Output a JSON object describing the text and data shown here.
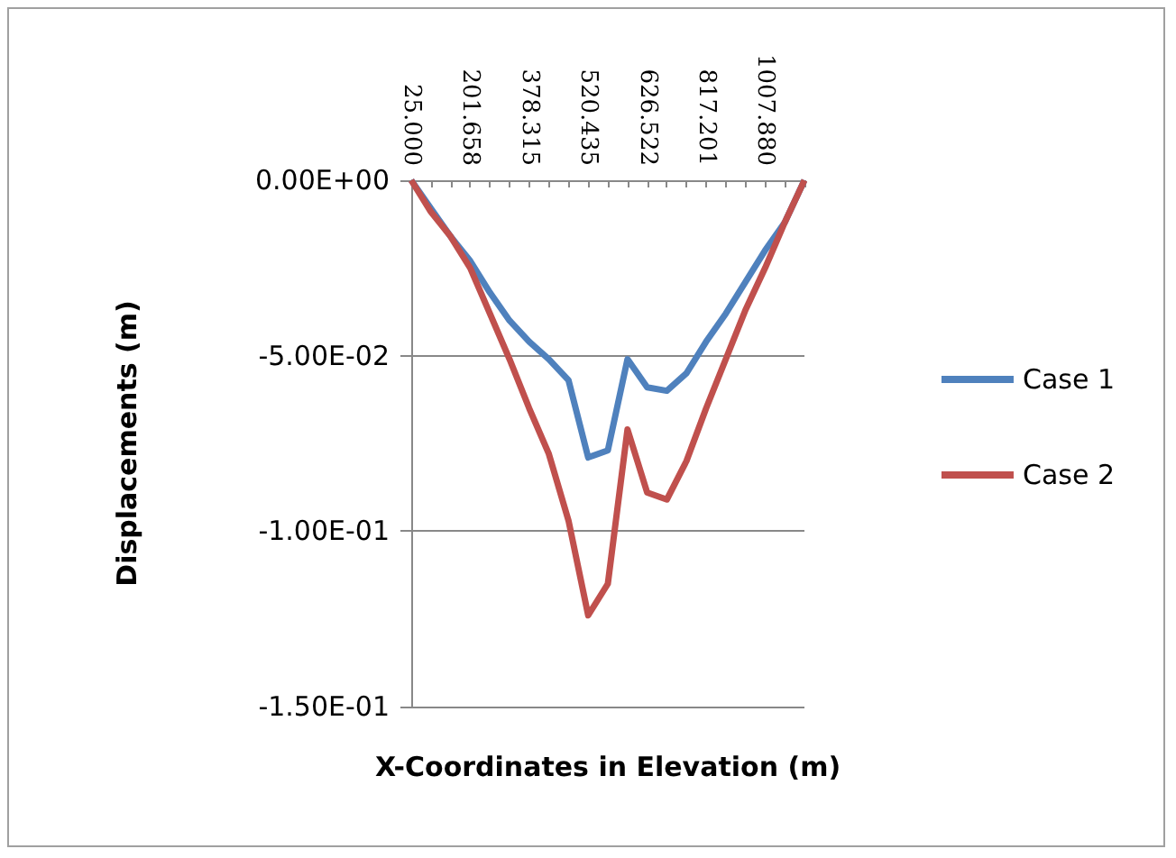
{
  "chart_data": {
    "type": "line",
    "xlabel": "X-Coordinates in Elevation (m)",
    "ylabel": "Displacements (m)",
    "categories": [
      "25.000",
      null,
      null,
      "201.658",
      null,
      null,
      "378.315",
      null,
      null,
      "520.435",
      null,
      null,
      "626.522",
      null,
      null,
      "817.201",
      null,
      null,
      "1007.880",
      null,
      null
    ],
    "series": [
      {
        "name": "Case 1",
        "color": "#4f81bd",
        "values": [
          0,
          -0.008,
          -0.016,
          -0.023,
          -0.032,
          -0.04,
          -0.046,
          -0.051,
          -0.057,
          -0.079,
          -0.077,
          -0.051,
          -0.059,
          -0.06,
          -0.055,
          -0.046,
          -0.038,
          -0.029,
          -0.02,
          -0.012,
          0
        ]
      },
      {
        "name": "Case 2",
        "color": "#c0504d",
        "values": [
          0,
          -0.009,
          -0.016,
          -0.025,
          -0.038,
          -0.051,
          -0.065,
          -0.078,
          -0.097,
          -0.124,
          -0.115,
          -0.071,
          -0.089,
          -0.091,
          -0.08,
          -0.065,
          -0.051,
          -0.037,
          -0.025,
          -0.012,
          0
        ]
      }
    ],
    "ylim": [
      -0.15,
      0
    ],
    "yticks": [
      {
        "value": -0.15,
        "label": "-1.50E-01"
      },
      {
        "value": -0.1,
        "label": "-1.00E-01"
      },
      {
        "value": -0.05,
        "label": "-5.00E-02"
      },
      {
        "value": 0,
        "label": "0.00E+00"
      }
    ],
    "grid": "y",
    "legend": "right",
    "marker": "none",
    "line_style": "solid"
  }
}
